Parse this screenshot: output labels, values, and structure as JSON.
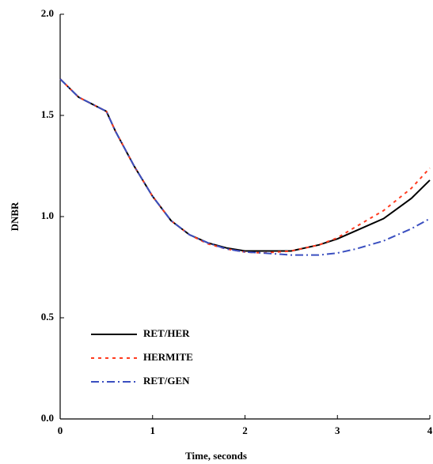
{
  "chart_data": {
    "type": "line",
    "x_label": "Time, seconds",
    "y_label": "DNBR",
    "x": [
      0,
      0.2,
      0.5,
      0.6,
      0.8,
      1,
      1.2,
      1.4,
      1.6,
      1.8,
      2,
      2.2,
      2.5,
      2.8,
      3,
      3.2,
      3.5,
      3.8,
      4
    ],
    "series": [
      {
        "name": "RET/HER",
        "color": "#000000",
        "style": "solid",
        "values": [
          1.68,
          1.59,
          1.52,
          1.42,
          1.25,
          1.1,
          0.98,
          0.91,
          0.87,
          0.845,
          0.83,
          0.83,
          0.83,
          0.86,
          0.89,
          0.93,
          0.99,
          1.09,
          1.18
        ]
      },
      {
        "name": "HERMITE",
        "color": "#ff3b1f",
        "style": "dotted",
        "values": [
          1.68,
          1.59,
          1.52,
          1.42,
          1.25,
          1.1,
          0.98,
          0.91,
          0.865,
          0.84,
          0.825,
          0.82,
          0.83,
          0.86,
          0.895,
          0.95,
          1.03,
          1.14,
          1.24
        ]
      },
      {
        "name": "RET/GEN",
        "color": "#3a4fc0",
        "style": "dashdot",
        "values": [
          1.68,
          1.59,
          1.52,
          1.42,
          1.25,
          1.1,
          0.98,
          0.91,
          0.87,
          0.84,
          0.825,
          0.82,
          0.81,
          0.81,
          0.82,
          0.84,
          0.88,
          0.94,
          0.99
        ]
      }
    ],
    "xlim": [
      0,
      4
    ],
    "xticks": [
      0,
      1,
      2,
      3,
      4
    ],
    "ylim": [
      0,
      2
    ],
    "yticks": [
      {
        "value": 0,
        "label": "0.0"
      },
      {
        "value": 0.5,
        "label": "0.5"
      },
      {
        "value": 1,
        "label": "1.0"
      },
      {
        "value": 1.5,
        "label": "1.5"
      },
      {
        "value": 2,
        "label": "2.0"
      }
    ],
    "legend": "lower left",
    "grid": false
  }
}
